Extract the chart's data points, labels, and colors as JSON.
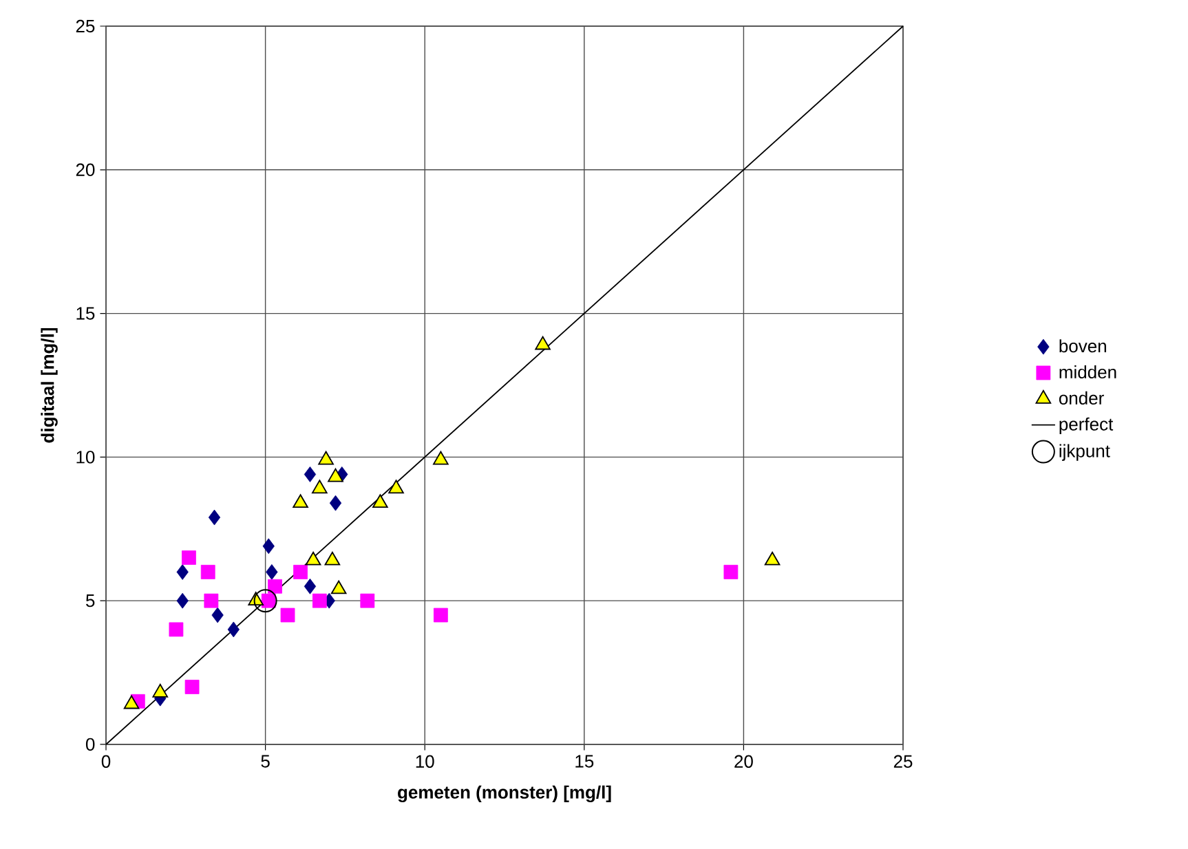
{
  "chart_data": {
    "type": "scatter",
    "xlabel": "gemeten (monster) [mg/l]",
    "ylabel": "digitaal [mg/l]",
    "xlim": [
      0,
      25
    ],
    "ylim": [
      0,
      25
    ],
    "xticks": [
      0,
      5,
      10,
      15,
      20,
      25
    ],
    "yticks": [
      0,
      5,
      10,
      15,
      20,
      25
    ],
    "grid": true,
    "legend": "right",
    "series": [
      {
        "name": "boven",
        "marker": "diamond",
        "color": "#000080",
        "x": [
          3.4,
          6.4,
          7.4,
          7.2,
          5.1,
          2.4,
          5.2,
          6.4,
          2.4,
          7.0,
          3.5,
          4.0,
          1.7
        ],
        "values": [
          7.9,
          9.4,
          9.4,
          8.4,
          6.9,
          6.0,
          6.0,
          5.5,
          5.0,
          5.0,
          4.5,
          4.0,
          1.6
        ]
      },
      {
        "name": "midden",
        "marker": "square",
        "color": "#ff00ff",
        "x": [
          2.6,
          3.2,
          3.3,
          2.2,
          2.7,
          1.0,
          6.1,
          5.3,
          5.1,
          5.7,
          6.7,
          8.2,
          10.5,
          19.6
        ],
        "values": [
          6.5,
          6.0,
          5.0,
          4.0,
          2.0,
          1.5,
          6.0,
          5.5,
          5.0,
          4.5,
          5.0,
          5.0,
          4.5,
          6.0
        ]
      },
      {
        "name": "onder",
        "marker": "triangle",
        "color": "#ffff00",
        "x": [
          6.9,
          7.2,
          6.7,
          6.1,
          8.6,
          9.1,
          10.5,
          13.7,
          6.5,
          7.1,
          7.3,
          4.7,
          1.7,
          0.8,
          20.9
        ],
        "values": [
          9.9,
          9.3,
          8.9,
          8.4,
          8.4,
          8.9,
          9.9,
          13.9,
          6.4,
          6.4,
          5.4,
          5.0,
          1.8,
          1.4,
          6.4
        ]
      },
      {
        "name": "perfect",
        "type": "line",
        "marker": "none",
        "line_style": "solid",
        "color": "#000000",
        "x": [
          0,
          25
        ],
        "values": [
          0,
          25
        ]
      },
      {
        "name": "ijkpunt",
        "marker": "circle",
        "color": "#000000",
        "x": [
          5
        ],
        "values": [
          5
        ]
      }
    ]
  }
}
